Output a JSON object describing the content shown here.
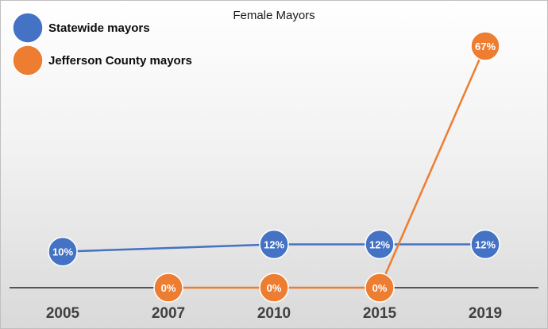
{
  "chart_data": {
    "type": "line",
    "title": "Female Mayors",
    "categories": [
      "2005",
      "2007",
      "2010",
      "2015",
      "2019"
    ],
    "series": [
      {
        "name": "Statewide mayors",
        "color": "#4472C4",
        "values": [
          10,
          null,
          12,
          12,
          12
        ],
        "labels": [
          "10%",
          null,
          "12%",
          "12%",
          "12%"
        ]
      },
      {
        "name": "Jefferson County mayors",
        "color": "#ED7D31",
        "values": [
          null,
          0,
          0,
          0,
          67
        ],
        "labels": [
          null,
          "0%",
          "0%",
          "0%",
          "67%"
        ]
      }
    ],
    "ylim": [
      0,
      67
    ],
    "grid": false,
    "legend_position": "top-left",
    "background": "light gray gradient"
  }
}
